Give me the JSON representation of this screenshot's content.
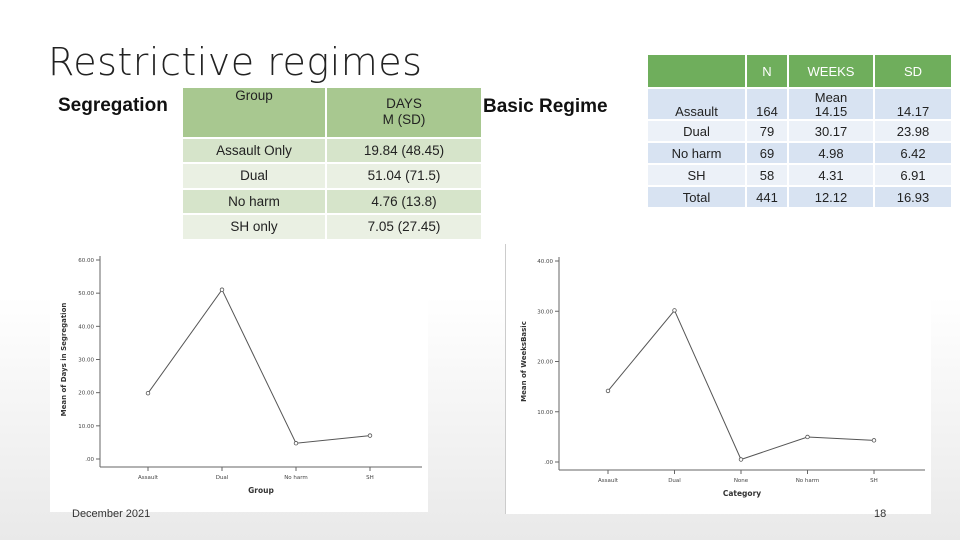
{
  "slide": {
    "title": "Restrictive regimes",
    "segregation_label": "Segregation",
    "basic_label": "Basic Regime",
    "footer_date": "December 2021",
    "page_number": "18"
  },
  "segregation_table": {
    "headers": [
      "Group",
      "DAYS\nM (SD)"
    ],
    "rows": [
      [
        "Assault Only",
        "19.84 (48.45)"
      ],
      [
        "Dual",
        "51.04 (71.5)"
      ],
      [
        "No harm",
        "4.76 (13.8)"
      ],
      [
        "SH only",
        "7.05 (27.45)"
      ]
    ]
  },
  "basic_table": {
    "headers": [
      "",
      "N",
      "WEEKS",
      "SD"
    ],
    "mean_subheader": "Mean",
    "rows": [
      [
        "Assault",
        "164",
        "14.15",
        "14.17"
      ],
      [
        "Dual",
        "79",
        "30.17",
        "23.98"
      ],
      [
        "No harm",
        "69",
        "4.98",
        "6.42"
      ],
      [
        "SH",
        "58",
        "4.31",
        "6.91"
      ],
      [
        "Total",
        "441",
        "12.12",
        "16.93"
      ]
    ]
  },
  "colors": {
    "seg_header": "#a8c890",
    "basic_header": "#6fae5c",
    "line": "#555555"
  },
  "chart_data": [
    {
      "type": "line",
      "categories": [
        "Assault",
        "Dual",
        "No harm",
        "SH"
      ],
      "values": [
        19.84,
        51.04,
        4.76,
        7.05
      ],
      "xlabel": "Group",
      "ylabel": "Mean of Days in Segregation",
      "ylim": [
        0,
        60
      ],
      "yticks": [
        0,
        10,
        20,
        30,
        40,
        50,
        60
      ],
      "ytick_labels": [
        ".00",
        "10.00",
        "20.00",
        "30.00",
        "40.00",
        "50.00",
        "60.00"
      ],
      "grid": false
    },
    {
      "type": "line",
      "categories": [
        "Assault",
        "Dual",
        "None",
        "No harm",
        "SH"
      ],
      "values": [
        14.15,
        30.17,
        0.5,
        4.98,
        4.31
      ],
      "xlabel": "Category",
      "ylabel": "Mean of WeeksBasic",
      "ylim": [
        0,
        40
      ],
      "yticks": [
        0,
        10,
        20,
        30,
        40
      ],
      "ytick_labels": [
        ".00",
        "10.00",
        "20.00",
        "30.00",
        "40.00"
      ],
      "grid": false
    }
  ]
}
